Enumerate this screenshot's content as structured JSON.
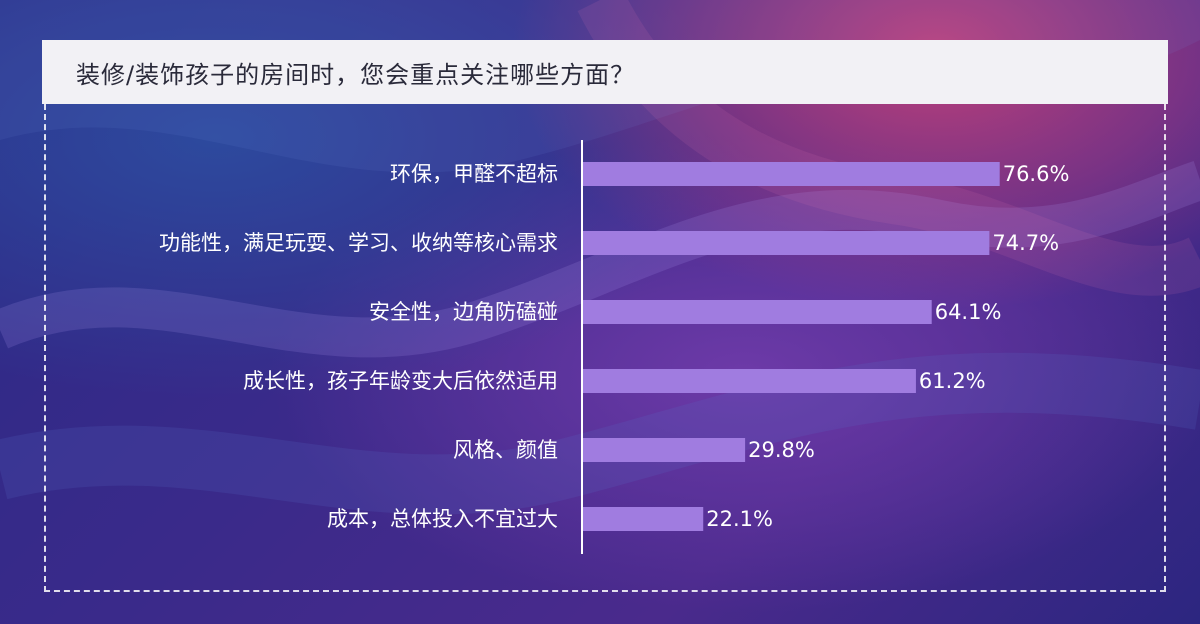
{
  "title": "装修/装饰孩子的房间时，您会重点关注哪些方面？",
  "colors": {
    "bar": "#a07ce0",
    "axis": "#ffffff",
    "label": "#ffffff",
    "title_bg": "#f2f1f5"
  },
  "chart_data": {
    "type": "bar",
    "orientation": "horizontal",
    "title": "装修/装饰孩子的房间时，您会重点关注哪些方面？",
    "categories": [
      "环保，甲醛不超标",
      "功能性，满足玩耍、学习、收纳等核心需求",
      "安全性，边角防磕碰",
      "成长性，孩子年龄变大后依然适用",
      "风格、颜值",
      "成本，总体投入不宜过大"
    ],
    "values": [
      76.6,
      74.7,
      64.1,
      61.2,
      29.8,
      22.1
    ],
    "value_labels": [
      "76.6%",
      "74.7%",
      "64.1%",
      "61.2%",
      "29.8%",
      "22.1%"
    ],
    "unit": "%",
    "xlim": [
      0,
      100
    ],
    "grid": false,
    "legend": "none"
  }
}
